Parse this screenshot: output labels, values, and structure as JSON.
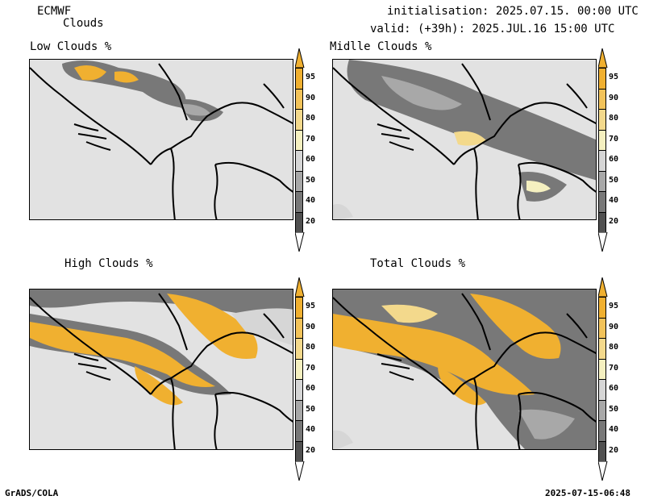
{
  "header": {
    "model": "ECMWF",
    "parameter": "Clouds",
    "init_text": "initialisation: 2025.07.15. 00:00 UTC",
    "valid_text": "valid: (+39h): 2025.JUL.16 15:00 UTC"
  },
  "panels": [
    {
      "title": "Low Clouds %"
    },
    {
      "title": "Midlle Clouds %"
    },
    {
      "title": "High Clouds %"
    },
    {
      "title": "Total Clouds %"
    }
  ],
  "colorbar": {
    "levels": [
      "95",
      "90",
      "80",
      "70",
      "60",
      "50",
      "40",
      "20"
    ],
    "colors": [
      "#f0b030",
      "#f2c35a",
      "#f3d98c",
      "#f5f0c0",
      "#d6d6d6",
      "#a8a8a8",
      "#787878",
      "#505050"
    ],
    "top_color": "#f0b030",
    "bottom_color": "#ffffff"
  },
  "footer": {
    "left": "GrADS/COLA",
    "right": "2025-07-15-06:48"
  }
}
